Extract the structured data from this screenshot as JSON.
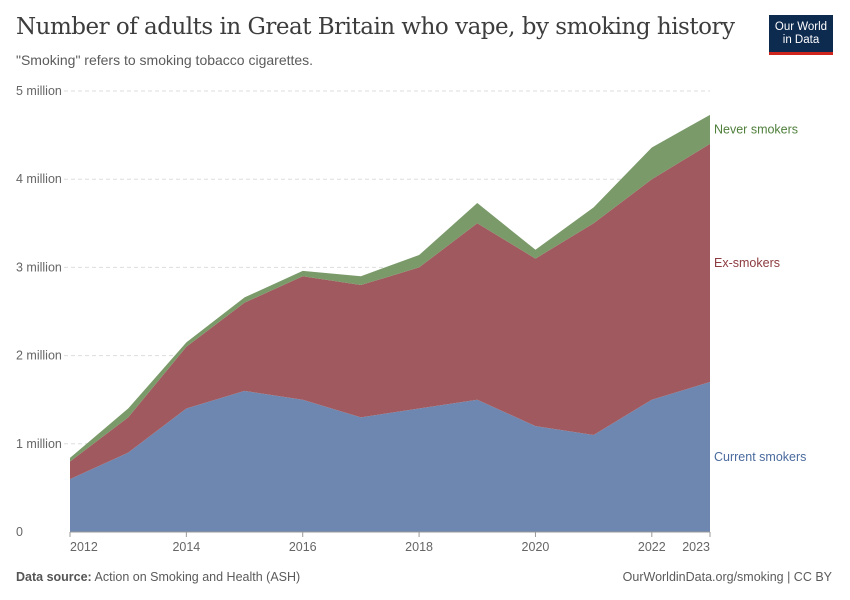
{
  "header": {
    "title": "Number of adults in Great Britain who vape, by smoking history",
    "subtitle": "\"Smoking\" refers to smoking tobacco cigarettes.",
    "logo": "Our World in Data"
  },
  "footer": {
    "source_label": "Data source:",
    "source": "Action on Smoking and Health (ASH)",
    "credit": "OurWorldinData.org/smoking | CC BY"
  },
  "chart_data": {
    "type": "area",
    "stacked": true,
    "title": "Number of adults in Great Britain who vape, by smoking history",
    "subtitle": "\"Smoking\" refers to smoking tobacco cigarettes.",
    "x": [
      2012,
      2013,
      2014,
      2015,
      2016,
      2017,
      2018,
      2019,
      2020,
      2021,
      2022,
      2023
    ],
    "xticks": [
      "2012",
      "2014",
      "2016",
      "2018",
      "2020",
      "2022",
      "2023"
    ],
    "yticks": [
      "0",
      "1 million",
      "2 million",
      "3 million",
      "4 million",
      "5 million"
    ],
    "ylim": [
      0,
      5000000
    ],
    "grid": "horizontal dashed",
    "legend": "right, inline labels",
    "series": [
      {
        "name": "Current smokers",
        "color": "#6d87b0",
        "label_color": "#4a6a9d",
        "values": [
          600000,
          900000,
          1400000,
          1600000,
          1500000,
          1300000,
          1400000,
          1500000,
          1200000,
          1100000,
          1500000,
          1700000
        ]
      },
      {
        "name": "Ex-smokers",
        "color": "#a05a5f",
        "label_color": "#8c3b40",
        "values": [
          200000,
          400000,
          700000,
          1000000,
          1400000,
          1500000,
          1600000,
          2000000,
          1900000,
          2400000,
          2500000,
          2700000
        ]
      },
      {
        "name": "Never smokers",
        "color": "#7a9a6a",
        "label_color": "#4f7f3a",
        "values": [
          40000,
          100000,
          50000,
          60000,
          60000,
          100000,
          140000,
          230000,
          100000,
          180000,
          360000,
          330000
        ]
      }
    ]
  }
}
